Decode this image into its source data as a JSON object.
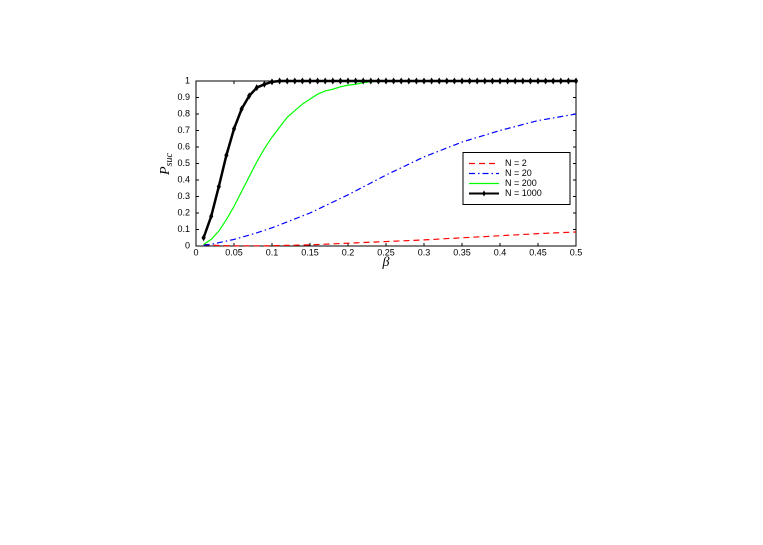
{
  "chart_data": {
    "type": "line",
    "xlabel": "β",
    "ylabel": "P",
    "ylabel_sub": "suc",
    "xlim": [
      0,
      0.5
    ],
    "ylim": [
      0,
      1
    ],
    "xticks": [
      0,
      0.05,
      0.1,
      0.15,
      0.2,
      0.25,
      0.3,
      0.35,
      0.4,
      0.45,
      0.5
    ],
    "yticks": [
      0,
      0.1,
      0.2,
      0.3,
      0.4,
      0.5,
      0.6,
      0.7,
      0.8,
      0.9,
      1
    ],
    "legend": "east",
    "x": [
      0.01,
      0.02,
      0.03,
      0.04,
      0.05,
      0.06,
      0.07,
      0.08,
      0.09,
      0.1,
      0.11,
      0.12,
      0.13,
      0.14,
      0.15,
      0.16,
      0.17,
      0.18,
      0.19,
      0.2,
      0.21,
      0.22,
      0.23,
      0.24,
      0.25,
      0.26,
      0.27,
      0.28,
      0.29,
      0.3,
      0.31,
      0.32,
      0.33,
      0.34,
      0.35,
      0.36,
      0.37,
      0.38,
      0.39,
      0.4,
      0.41,
      0.42,
      0.43,
      0.44,
      0.45,
      0.46,
      0.47,
      0.48,
      0.49,
      0.5
    ],
    "series": [
      {
        "name": "N = 2",
        "color": "#ff0000",
        "linestyle": "--",
        "values": [
          0.01,
          0.005,
          0.003,
          0.002,
          0.001,
          0.001,
          0.001,
          0.001,
          0.001,
          0.002,
          0.003,
          0.004,
          0.005,
          0.006,
          0.007,
          0.009,
          0.011,
          0.013,
          0.015,
          0.017,
          0.019,
          0.021,
          0.023,
          0.025,
          0.027,
          0.029,
          0.031,
          0.033,
          0.035,
          0.037,
          0.039,
          0.042,
          0.045,
          0.047,
          0.05,
          0.052,
          0.055,
          0.057,
          0.06,
          0.062,
          0.065,
          0.067,
          0.07,
          0.072,
          0.075,
          0.077,
          0.079,
          0.081,
          0.083,
          0.085
        ]
      },
      {
        "name": "N = 20",
        "color": "#0000ff",
        "linestyle": "-.",
        "values": [
          0.005,
          0.01,
          0.02,
          0.03,
          0.04,
          0.053,
          0.066,
          0.08,
          0.095,
          0.11,
          0.128,
          0.146,
          0.164,
          0.182,
          0.2,
          0.222,
          0.244,
          0.266,
          0.288,
          0.31,
          0.334,
          0.358,
          0.382,
          0.406,
          0.43,
          0.452,
          0.474,
          0.496,
          0.518,
          0.54,
          0.558,
          0.576,
          0.594,
          0.612,
          0.63,
          0.644,
          0.658,
          0.672,
          0.686,
          0.7,
          0.712,
          0.724,
          0.736,
          0.748,
          0.76,
          0.768,
          0.776,
          0.784,
          0.792,
          0.8
        ]
      },
      {
        "name": "N = 200",
        "color": "#00ff00",
        "linestyle": "-",
        "values": [
          0.01,
          0.04,
          0.09,
          0.16,
          0.24,
          0.33,
          0.42,
          0.51,
          0.59,
          0.66,
          0.72,
          0.78,
          0.82,
          0.86,
          0.89,
          0.92,
          0.94,
          0.95,
          0.965,
          0.975,
          0.98,
          0.99,
          0.995,
          1,
          1,
          1,
          1,
          1,
          1,
          1,
          1,
          1,
          1,
          1,
          1,
          1,
          1,
          1,
          1,
          1,
          1,
          1,
          1,
          1,
          1,
          1,
          1,
          1,
          1,
          1
        ]
      },
      {
        "name": "N = 1000",
        "color": "#000000",
        "linestyle": "-",
        "marker": "diamond",
        "values": [
          0.05,
          0.18,
          0.36,
          0.55,
          0.71,
          0.83,
          0.91,
          0.96,
          0.98,
          0.995,
          1,
          1,
          1,
          1,
          1,
          1,
          1,
          1,
          1,
          1,
          1,
          1,
          1,
          1,
          1,
          1,
          1,
          1,
          1,
          1,
          1,
          1,
          1,
          1,
          1,
          1,
          1,
          1,
          1,
          1,
          1,
          1,
          1,
          1,
          1,
          1,
          1,
          1,
          1,
          1
        ]
      }
    ]
  }
}
